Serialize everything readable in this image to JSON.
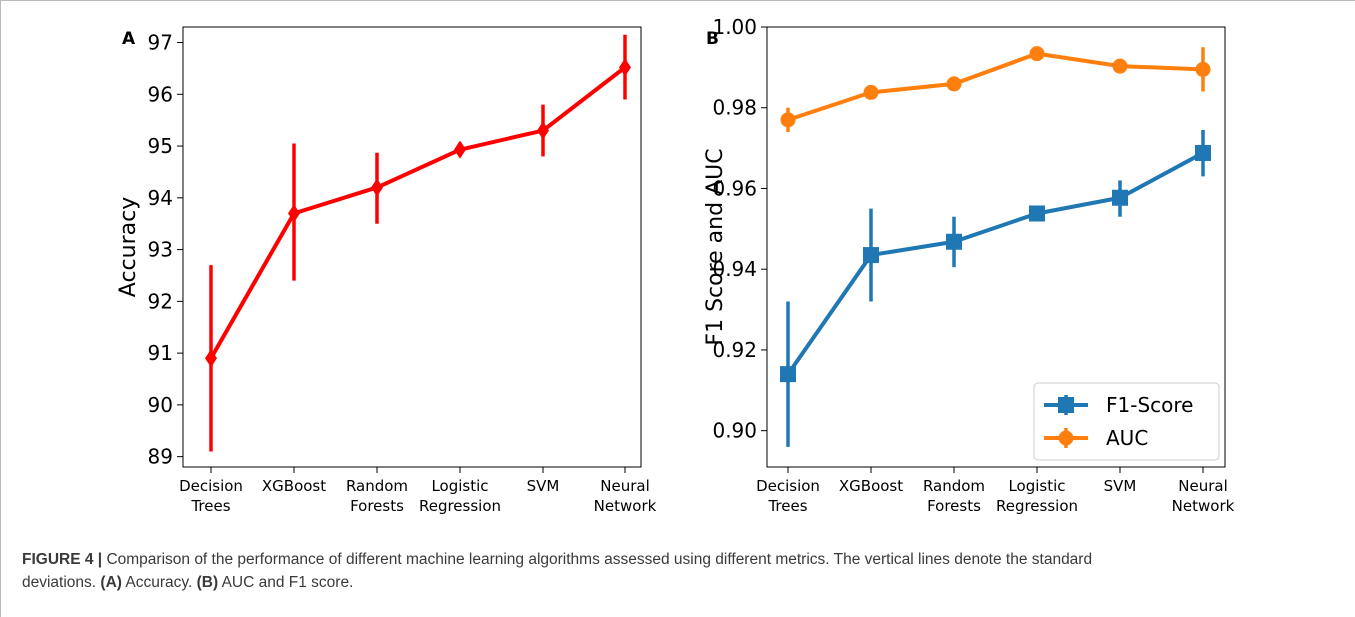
{
  "chart_data": [
    {
      "panel_label": "A",
      "type": "line",
      "categories": [
        [
          "Decision",
          "Trees"
        ],
        [
          "XGBoost"
        ],
        [
          "Random",
          "Forests"
        ],
        [
          "Logistic",
          "Regression"
        ],
        [
          "SVM"
        ],
        [
          "Neural",
          "Network"
        ]
      ],
      "ylabel": "Accuracy",
      "ylim": [
        88.8,
        97.3
      ],
      "yticks": [
        89,
        90,
        91,
        92,
        93,
        94,
        95,
        96,
        97
      ],
      "series": [
        {
          "marker": "diamond",
          "color": "#ff0000",
          "values": [
            90.9,
            93.7,
            94.2,
            94.93,
            95.3,
            96.52
          ],
          "error_low": [
            89.1,
            92.4,
            93.5,
            94.8,
            94.8,
            95.9
          ],
          "error_high": [
            92.7,
            95.05,
            94.87,
            95.07,
            95.8,
            97.15
          ]
        }
      ]
    },
    {
      "panel_label": "B",
      "type": "line",
      "categories": [
        [
          "Decision",
          "Trees"
        ],
        [
          "XGBoost"
        ],
        [
          "Random",
          "Forests"
        ],
        [
          "Logistic",
          "Regression"
        ],
        [
          "SVM"
        ],
        [
          "Neural",
          "Network"
        ]
      ],
      "ylabel": "F1 Score and AUC",
      "ylim": [
        0.891,
        1.0
      ],
      "yticks": [
        "0.90",
        "0.92",
        "0.94",
        "0.96",
        "0.98",
        "1.00"
      ],
      "legend_position": "lower-right",
      "series": [
        {
          "name": "F1-Score",
          "marker": "square",
          "color": "#1f77b4",
          "values": [
            0.914,
            0.9435,
            0.9468,
            0.9538,
            0.9577,
            0.9688
          ],
          "error_low": [
            0.896,
            0.932,
            0.9405,
            0.953,
            0.953,
            0.963
          ],
          "error_high": [
            0.932,
            0.955,
            0.953,
            0.9546,
            0.962,
            0.9745
          ]
        },
        {
          "name": "AUC",
          "marker": "circle",
          "color": "#ff7f0e",
          "values": [
            0.977,
            0.9838,
            0.9859,
            0.9934,
            0.9903,
            0.9895
          ],
          "error_low": [
            0.974,
            0.9826,
            0.9849,
            0.9925,
            0.9895,
            0.984
          ],
          "error_high": [
            0.98,
            0.985,
            0.987,
            0.9943,
            0.9911,
            0.995
          ]
        }
      ]
    }
  ],
  "caption": {
    "label": "FIGURE 4 |",
    "line1": " Comparison of the performance of different machine learning algorithms assessed using different metrics. The vertical lines denote the standard",
    "line2_text": "deviations. ",
    "ref_a": "(A)",
    "text_a": " Accuracy. ",
    "ref_b": "(B)",
    "text_b": " AUC and F1 score."
  }
}
